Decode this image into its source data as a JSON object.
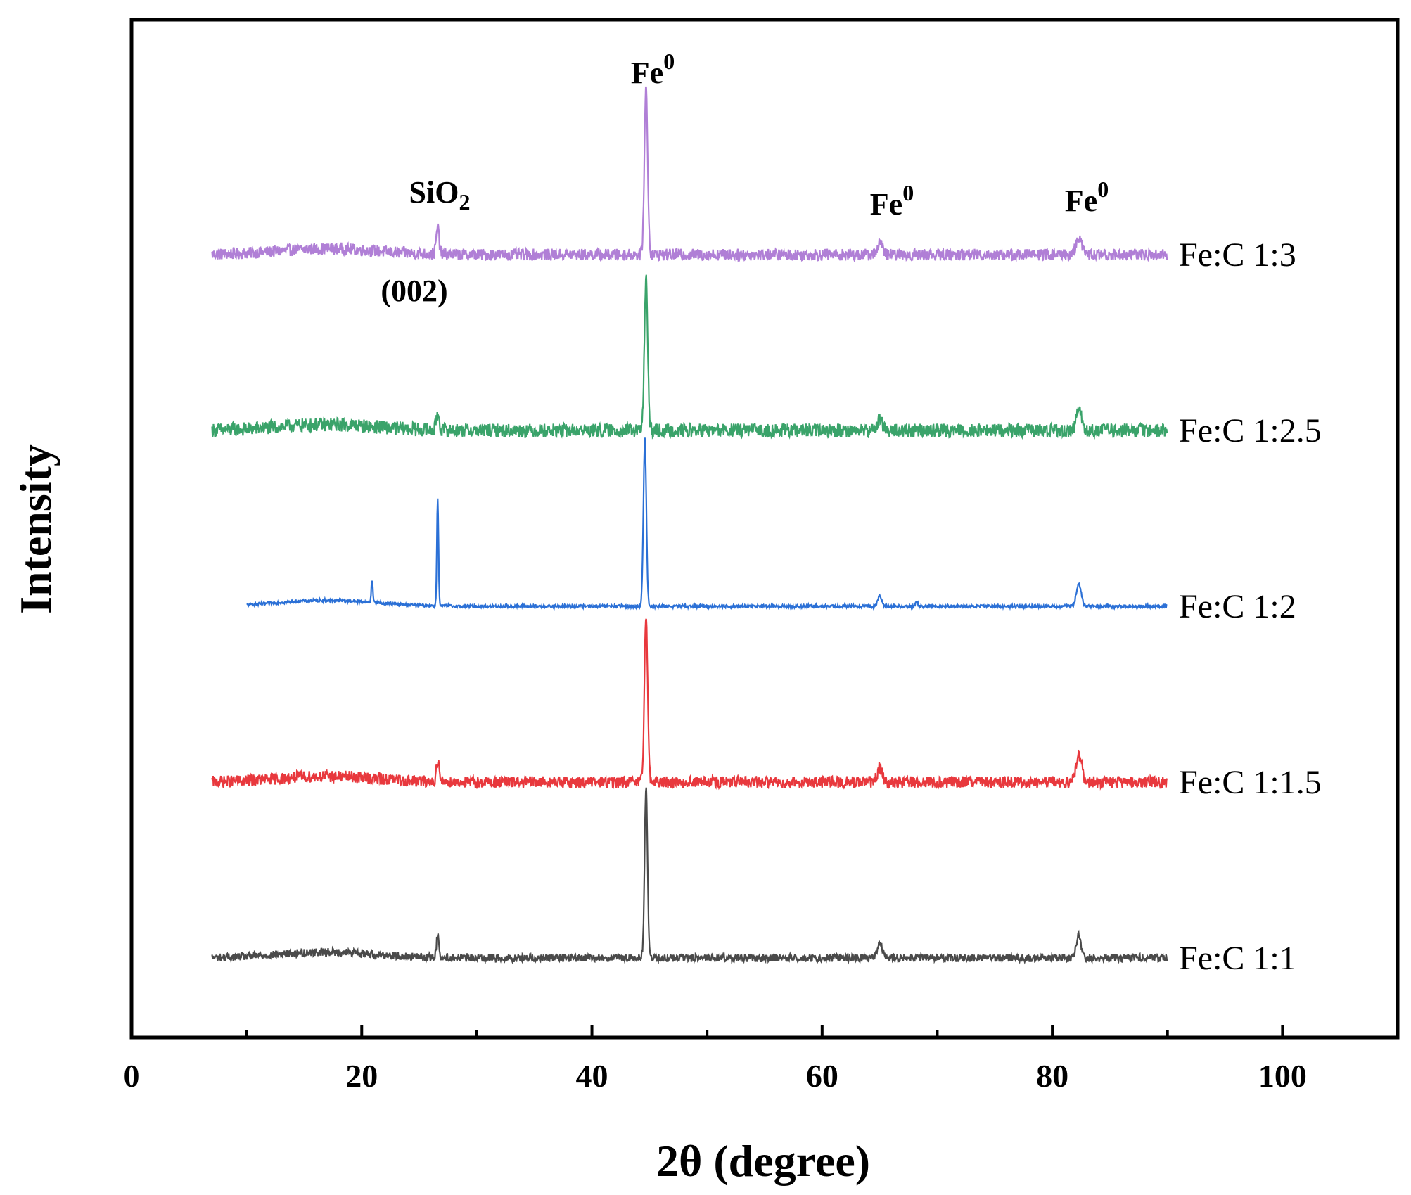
{
  "chart_data": {
    "type": "line",
    "title": "",
    "xlabel": "2θ (degree)",
    "ylabel": "Intensity",
    "xlim": [
      0,
      110
    ],
    "xticks": [
      0,
      20,
      40,
      60,
      80,
      100
    ],
    "xtick_labels": [
      "0",
      "20",
      "40",
      "60",
      "80",
      "100"
    ],
    "yticks_visible": false,
    "grid": false,
    "legend": "inline labels at right end of each trace",
    "series": [
      {
        "name": "Fe:C 1:3",
        "label": "Fe:C 1:3",
        "color": "#b07fd6",
        "x_range": [
          7,
          90
        ],
        "baseline_offset": 4,
        "noise": 0.12,
        "peaks": [
          {
            "x": 26.6,
            "height": 0.55,
            "width": 0.18
          },
          {
            "x": 44.7,
            "height": 3.4,
            "width": 0.2
          },
          {
            "x": 65.0,
            "height": 0.25,
            "width": 0.3
          },
          {
            "x": 82.3,
            "height": 0.35,
            "width": 0.35
          }
        ]
      },
      {
        "name": "Fe:C 1:2.5",
        "label": "Fe:C 1:2.5",
        "color": "#3aa36a",
        "x_range": [
          7,
          90
        ],
        "baseline_offset": 3,
        "noise": 0.14,
        "peaks": [
          {
            "x": 26.6,
            "height": 0.35,
            "width": 0.18
          },
          {
            "x": 44.7,
            "height": 3.1,
            "width": 0.2
          },
          {
            "x": 65.0,
            "height": 0.25,
            "width": 0.3
          },
          {
            "x": 82.3,
            "height": 0.4,
            "width": 0.35
          }
        ]
      },
      {
        "name": "Fe:C 1:2",
        "label": "Fe:C 1:2",
        "color": "#2b70d6",
        "x_range": [
          10,
          90
        ],
        "baseline_offset": 2,
        "noise": 0.03,
        "peaks": [
          {
            "x": 20.9,
            "height": 0.45,
            "width": 0.1
          },
          {
            "x": 26.6,
            "height": 2.2,
            "width": 0.1
          },
          {
            "x": 44.6,
            "height": 3.4,
            "width": 0.18
          },
          {
            "x": 65.0,
            "height": 0.2,
            "width": 0.25
          },
          {
            "x": 68.2,
            "height": 0.1,
            "width": 0.15
          },
          {
            "x": 82.3,
            "height": 0.45,
            "width": 0.3
          }
        ]
      },
      {
        "name": "Fe:C 1:1.5",
        "label": "Fe:C 1:1.5",
        "color": "#e8383d",
        "x_range": [
          7,
          90
        ],
        "baseline_offset": 1,
        "noise": 0.12,
        "peaks": [
          {
            "x": 26.6,
            "height": 0.45,
            "width": 0.16
          },
          {
            "x": 44.7,
            "height": 3.4,
            "width": 0.2
          },
          {
            "x": 65.0,
            "height": 0.3,
            "width": 0.3
          },
          {
            "x": 82.3,
            "height": 0.55,
            "width": 0.35
          }
        ]
      },
      {
        "name": "Fe:C 1:1",
        "label": "Fe:C 1:1",
        "color": "#4a4a4a",
        "x_range": [
          7,
          90
        ],
        "baseline_offset": 0,
        "noise": 0.08,
        "peaks": [
          {
            "x": 26.6,
            "height": 0.45,
            "width": 0.16
          },
          {
            "x": 44.7,
            "height": 3.5,
            "width": 0.18
          },
          {
            "x": 65.0,
            "height": 0.3,
            "width": 0.3
          },
          {
            "x": 82.3,
            "height": 0.45,
            "width": 0.3
          }
        ]
      }
    ],
    "annotations": [
      {
        "base": "Fe",
        "sup": "0",
        "x": 45.0
      },
      {
        "base": "SiO",
        "sub": "2",
        "x": 26.6
      },
      {
        "text": "(002)",
        "x": 24.5
      },
      {
        "base": "Fe",
        "sup": "0",
        "x": 66.0
      },
      {
        "base": "Fe",
        "sup": "0",
        "x": 83.0
      }
    ]
  }
}
